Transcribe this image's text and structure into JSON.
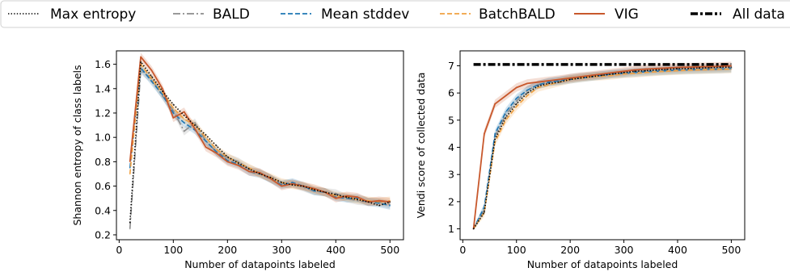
{
  "chart_data": [
    {
      "type": "line",
      "xlabel": "Number of datapoints labeled",
      "ylabel": "Shannon entropy of class labels",
      "xlim": [
        -5,
        525
      ],
      "ylim": [
        0.16,
        1.71
      ],
      "xticks": [
        0,
        100,
        200,
        300,
        400,
        500
      ],
      "yticks": [
        0.2,
        0.4,
        0.6,
        0.8,
        1.0,
        1.2,
        1.4,
        1.6
      ],
      "ytick_labels": [
        "0.2",
        "0.4",
        "0.6",
        "0.8",
        "1.0",
        "1.2",
        "1.4",
        "1.6"
      ],
      "x": [
        20,
        40,
        60,
        80,
        100,
        120,
        140,
        160,
        180,
        200,
        220,
        240,
        260,
        280,
        300,
        320,
        340,
        360,
        380,
        400,
        420,
        440,
        460,
        480,
        500
      ],
      "series": [
        {
          "name": "Max entropy",
          "values": [
            0.3,
            1.62,
            1.5,
            1.38,
            1.27,
            1.18,
            1.1,
            1.02,
            0.93,
            0.84,
            0.79,
            0.74,
            0.7,
            0.67,
            0.63,
            0.61,
            0.6,
            0.57,
            0.55,
            0.53,
            0.51,
            0.49,
            0.47,
            0.44,
            0.47
          ]
        },
        {
          "name": "BALD",
          "values": [
            0.25,
            1.55,
            1.48,
            1.34,
            1.22,
            1.05,
            1.12,
            0.97,
            0.88,
            0.83,
            0.8,
            0.74,
            0.71,
            0.66,
            0.62,
            0.62,
            0.59,
            0.56,
            0.55,
            0.54,
            0.5,
            0.48,
            0.47,
            0.47,
            0.45
          ]
        },
        {
          "name": "Mean stddev",
          "values": [
            0.75,
            1.57,
            1.46,
            1.35,
            1.2,
            1.12,
            1.06,
            0.97,
            0.88,
            0.81,
            0.78,
            0.72,
            0.7,
            0.66,
            0.61,
            0.63,
            0.6,
            0.56,
            0.55,
            0.51,
            0.5,
            0.5,
            0.47,
            0.46,
            0.44
          ]
        },
        {
          "name": "BatchBALD",
          "values": [
            0.7,
            1.6,
            1.48,
            1.37,
            1.24,
            1.15,
            1.1,
            1.0,
            0.9,
            0.84,
            0.79,
            0.75,
            0.7,
            0.67,
            0.63,
            0.61,
            0.6,
            0.57,
            0.55,
            0.52,
            0.51,
            0.49,
            0.48,
            0.47,
            0.48
          ]
        },
        {
          "name": "VIG",
          "values": [
            0.8,
            1.66,
            1.55,
            1.4,
            1.16,
            1.21,
            1.07,
            0.92,
            0.87,
            0.8,
            0.77,
            0.72,
            0.71,
            0.66,
            0.6,
            0.62,
            0.6,
            0.58,
            0.55,
            0.5,
            0.52,
            0.51,
            0.47,
            0.48,
            0.47
          ]
        }
      ]
    },
    {
      "type": "line",
      "xlabel": "Number of datapoints labeled",
      "ylabel": "Vendi score of collected data",
      "xlim": [
        -5,
        525
      ],
      "ylim": [
        0.6,
        7.55
      ],
      "xticks": [
        0,
        100,
        200,
        300,
        400,
        500
      ],
      "yticks": [
        1,
        2,
        3,
        4,
        5,
        6,
        7
      ],
      "ytick_labels": [
        "1",
        "2",
        "3",
        "4",
        "5",
        "6",
        "7"
      ],
      "x": [
        20,
        40,
        60,
        80,
        100,
        120,
        140,
        160,
        180,
        200,
        220,
        240,
        260,
        280,
        300,
        320,
        340,
        360,
        380,
        400,
        420,
        440,
        460,
        480,
        500
      ],
      "all_data_level": 7.05,
      "series": [
        {
          "name": "Max entropy",
          "values": [
            1.0,
            1.6,
            4.3,
            5.1,
            5.6,
            6.0,
            6.25,
            6.35,
            6.4,
            6.5,
            6.55,
            6.6,
            6.65,
            6.7,
            6.75,
            6.8,
            6.82,
            6.85,
            6.87,
            6.9,
            6.9,
            6.92,
            6.93,
            6.95,
            6.95
          ]
        },
        {
          "name": "BALD",
          "values": [
            1.0,
            1.7,
            4.4,
            5.2,
            5.7,
            6.1,
            6.3,
            6.4,
            6.45,
            6.55,
            6.6,
            6.62,
            6.66,
            6.7,
            6.75,
            6.8,
            6.82,
            6.84,
            6.86,
            6.88,
            6.9,
            6.91,
            6.92,
            6.93,
            6.94
          ]
        },
        {
          "name": "Mean stddev",
          "values": [
            1.0,
            1.8,
            4.5,
            5.3,
            5.8,
            6.1,
            6.3,
            6.4,
            6.45,
            6.5,
            6.55,
            6.6,
            6.65,
            6.7,
            6.72,
            6.75,
            6.78,
            6.8,
            6.82,
            6.84,
            6.85,
            6.86,
            6.87,
            6.88,
            6.9
          ]
        },
        {
          "name": "BatchBALD",
          "values": [
            1.0,
            1.6,
            4.2,
            5.0,
            5.5,
            5.9,
            6.2,
            6.3,
            6.4,
            6.5,
            6.55,
            6.6,
            6.62,
            6.65,
            6.7,
            6.72,
            6.75,
            6.78,
            6.8,
            6.82,
            6.84,
            6.85,
            6.86,
            6.87,
            6.88
          ]
        },
        {
          "name": "VIG",
          "values": [
            1.0,
            4.5,
            5.6,
            5.9,
            6.2,
            6.35,
            6.4,
            6.45,
            6.5,
            6.55,
            6.6,
            6.65,
            6.7,
            6.75,
            6.8,
            6.85,
            6.88,
            6.9,
            6.92,
            6.94,
            6.95,
            6.96,
            6.97,
            6.98,
            7.0
          ]
        }
      ]
    }
  ],
  "legend": {
    "placement": "top",
    "items": [
      {
        "label": "Max entropy",
        "color": "#000000",
        "style": "dotted"
      },
      {
        "label": "BALD",
        "color": "#8c8c8c",
        "style": "dashdot"
      },
      {
        "label": "Mean stddev",
        "color": "#1f77b4",
        "style": "dashed"
      },
      {
        "label": "BatchBALD",
        "color": "#f0a040",
        "style": "dashed"
      },
      {
        "label": "VIG",
        "color": "#c8582c",
        "style": "solid"
      },
      {
        "label": "All data",
        "color": "#000000",
        "style": "thick-dashdot"
      }
    ]
  }
}
